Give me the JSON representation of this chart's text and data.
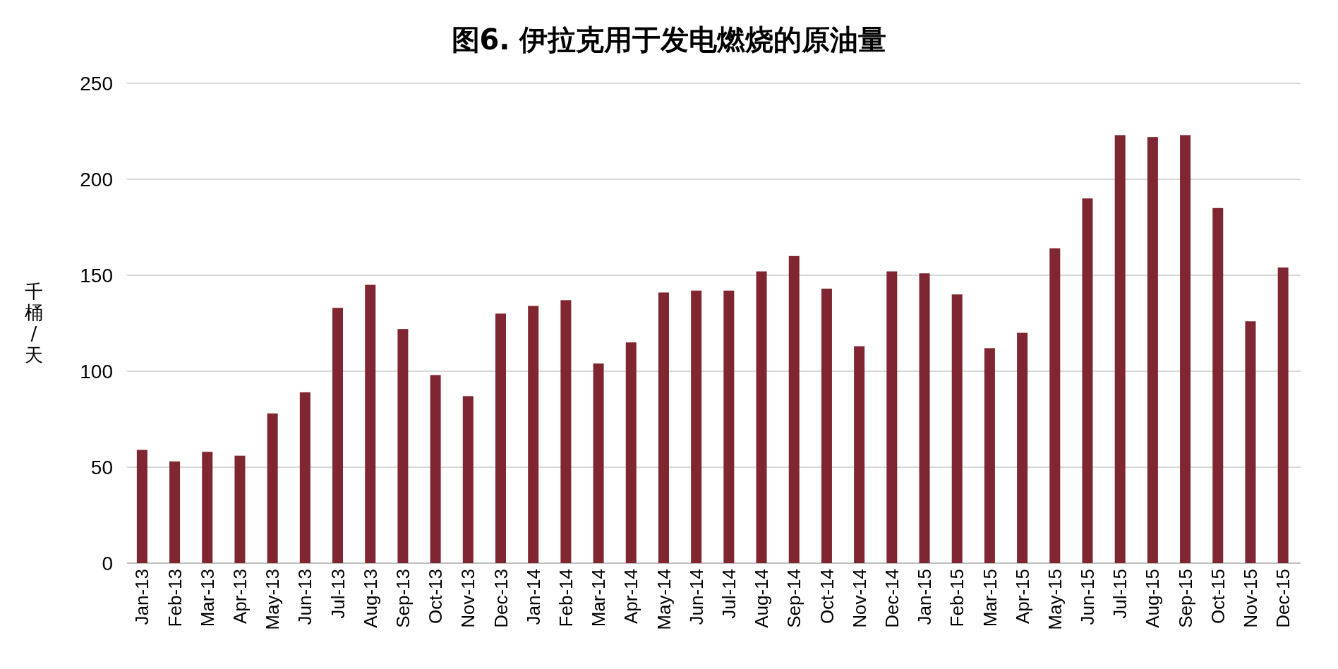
{
  "chart_data": {
    "type": "bar",
    "title": "图6. 伊拉克用于发电燃烧的原油量",
    "ylabel": "千桶/天",
    "categories": [
      "Jan-13",
      "Feb-13",
      "Mar-13",
      "Apr-13",
      "May-13",
      "Jun-13",
      "Jul-13",
      "Aug-13",
      "Sep-13",
      "Oct-13",
      "Nov-13",
      "Dec-13",
      "Jan-14",
      "Feb-14",
      "Mar-14",
      "Apr-14",
      "May-14",
      "Jun-14",
      "Jul-14",
      "Aug-14",
      "Sep-14",
      "Oct-14",
      "Nov-14",
      "Dec-14",
      "Jan-15",
      "Feb-15",
      "Mar-15",
      "Apr-15",
      "May-15",
      "Jun-15",
      "Jul-15",
      "Aug-15",
      "Sep-15",
      "Oct-15",
      "Nov-15",
      "Dec-15"
    ],
    "values": [
      59,
      53,
      58,
      56,
      78,
      89,
      133,
      145,
      122,
      98,
      87,
      130,
      134,
      137,
      104,
      115,
      141,
      142,
      142,
      152,
      160,
      143,
      113,
      152,
      151,
      140,
      112,
      120,
      164,
      190,
      223,
      222,
      223,
      185,
      126,
      154
    ],
    "color": "#7f2630",
    "ylim": [
      0,
      250
    ],
    "yticks": [
      0,
      50,
      100,
      150,
      200,
      250
    ],
    "grid": "y"
  }
}
